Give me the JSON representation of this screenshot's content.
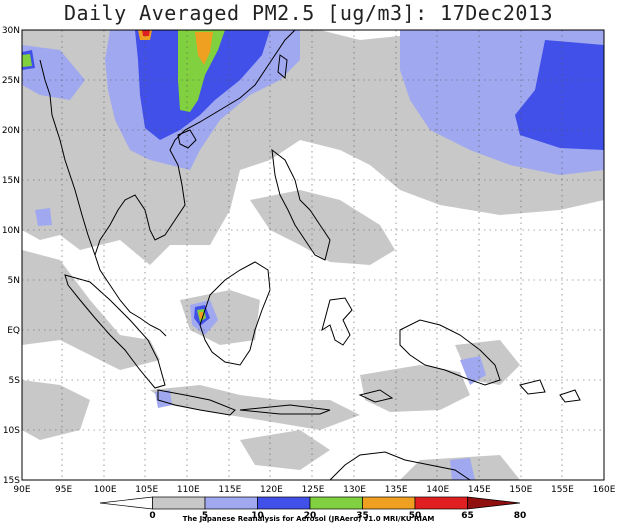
{
  "title": "Daily Averaged PM2.5 [ug/m3]: 17Dec2013",
  "credit": "The Japanese Reanalysis for Aerosol (JRAero) v1.0 MRI/KU RIAM",
  "lon_labels": [
    "90E",
    "95E",
    "100E",
    "105E",
    "110E",
    "115E",
    "120E",
    "125E",
    "130E",
    "135E",
    "140E",
    "145E",
    "150E",
    "155E",
    "160E"
  ],
  "lat_labels": [
    "30N",
    "25N",
    "20N",
    "15N",
    "10N",
    "5N",
    "EQ",
    "5S",
    "10S",
    "15S"
  ],
  "colorbar": {
    "ticks": [
      "0",
      "5",
      "10",
      "20",
      "35",
      "50",
      "65",
      "80"
    ],
    "colors": [
      "#ffffff",
      "#c8c8c8",
      "#a0a8f0",
      "#4050e8",
      "#80d040",
      "#f0a020",
      "#e02020",
      "#901010"
    ]
  }
}
